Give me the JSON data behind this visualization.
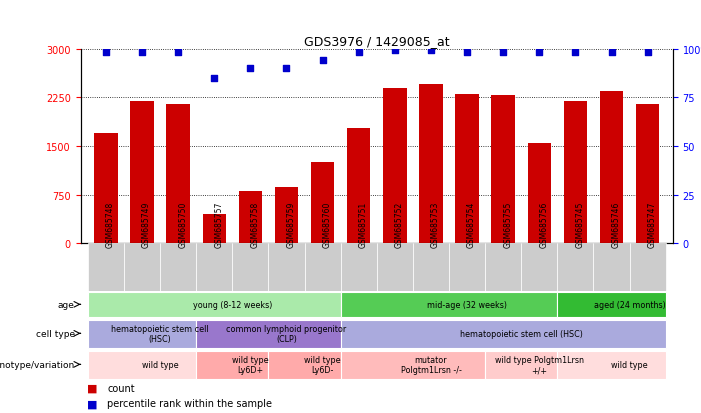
{
  "title": "GDS3976 / 1429085_at",
  "samples": [
    "GSM685748",
    "GSM685749",
    "GSM685750",
    "GSM685757",
    "GSM685758",
    "GSM685759",
    "GSM685760",
    "GSM685751",
    "GSM685752",
    "GSM685753",
    "GSM685754",
    "GSM685755",
    "GSM685756",
    "GSM685745",
    "GSM685746",
    "GSM685747"
  ],
  "counts": [
    1700,
    2200,
    2150,
    450,
    800,
    870,
    1250,
    1780,
    2400,
    2450,
    2300,
    2280,
    1550,
    2200,
    2350,
    2150
  ],
  "percentile_y_scaled": [
    2950,
    2950,
    2950,
    2550,
    2700,
    2700,
    2820,
    2950,
    2980,
    2980,
    2950,
    2950,
    2950,
    2950,
    2950,
    2950
  ],
  "bar_color": "#cc0000",
  "dot_color": "#0000cc",
  "ylim_left": [
    0,
    3000
  ],
  "ylim_right": [
    0,
    100
  ],
  "yticks_left": [
    0,
    750,
    1500,
    2250,
    3000
  ],
  "yticks_right": [
    0,
    25,
    50,
    75,
    100
  ],
  "age_groups": [
    {
      "label": "young (8-12 weeks)",
      "start": 0,
      "end": 7,
      "color": "#aaeaaa"
    },
    {
      "label": "mid-age (32 weeks)",
      "start": 7,
      "end": 13,
      "color": "#55cc55"
    },
    {
      "label": "aged (24 months)",
      "start": 13,
      "end": 16,
      "color": "#33bb33"
    }
  ],
  "cell_type_groups": [
    {
      "label": "hematopoietic stem cell\n(HSC)",
      "start": 0,
      "end": 3,
      "color": "#aaaadd"
    },
    {
      "label": "common lymphoid progenitor\n(CLP)",
      "start": 3,
      "end": 7,
      "color": "#9977cc"
    },
    {
      "label": "hematopoietic stem cell (HSC)",
      "start": 7,
      "end": 16,
      "color": "#aaaadd"
    }
  ],
  "genotype_groups": [
    {
      "label": "wild type",
      "start": 0,
      "end": 3,
      "color": "#ffdddd"
    },
    {
      "label": "wild type\nLy6D+",
      "start": 3,
      "end": 5,
      "color": "#ffaaaa"
    },
    {
      "label": "wild type\nLy6D-",
      "start": 5,
      "end": 7,
      "color": "#ffaaaa"
    },
    {
      "label": "mutator\nPolgtm1Lrsn -/-",
      "start": 7,
      "end": 11,
      "color": "#ffbbbb"
    },
    {
      "label": "wild type Polgtm1Lrsn\n+/+",
      "start": 11,
      "end": 13,
      "color": "#ffcccc"
    },
    {
      "label": "wild type",
      "start": 13,
      "end": 16,
      "color": "#ffdddd"
    }
  ],
  "row_labels": [
    "age",
    "cell type",
    "genotype/variation"
  ],
  "xtick_bg_color": "#cccccc",
  "bg_color": "#ffffff"
}
